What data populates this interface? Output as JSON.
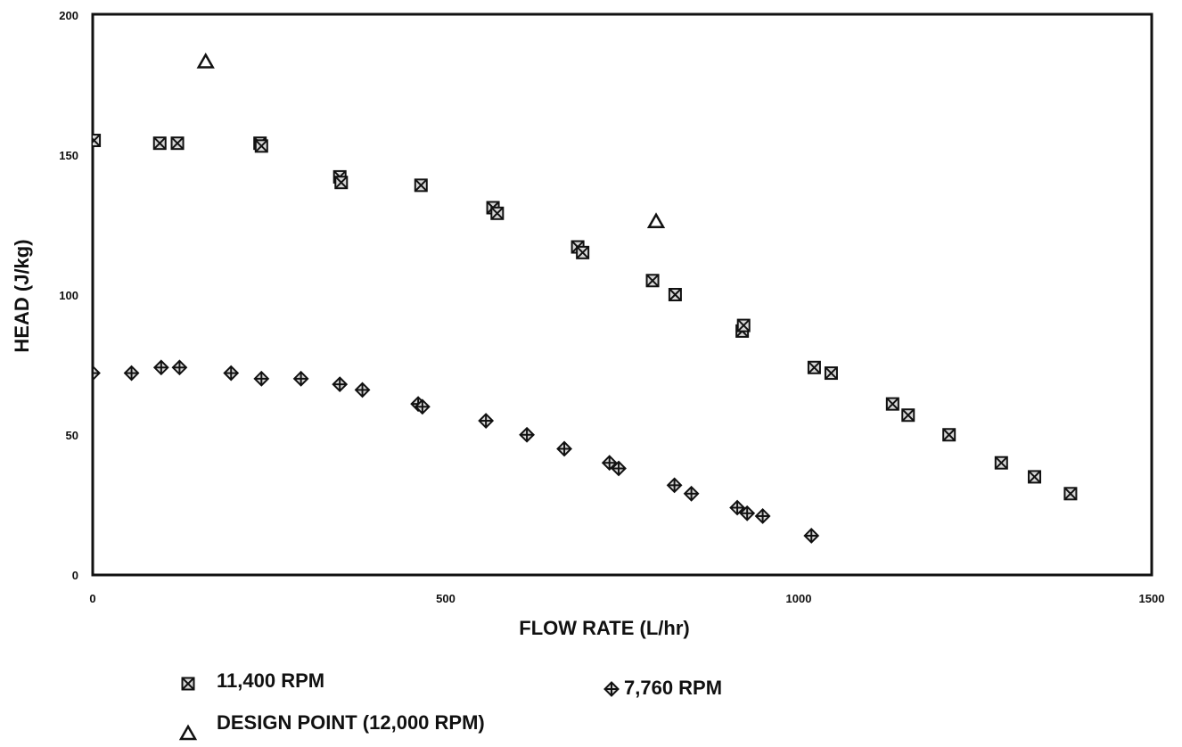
{
  "chart_data": {
    "type": "scatter",
    "title": "",
    "xlabel": "FLOW RATE (L/hr)",
    "ylabel": "HEAD (J/kg)",
    "xlim": [
      0,
      1500
    ],
    "ylim": [
      0,
      200
    ],
    "xticks": [
      "0",
      "500",
      "1000",
      "1500"
    ],
    "yticks": [
      "0",
      "50",
      "100",
      "150",
      "200"
    ],
    "grid": false,
    "legend_position": "bottom",
    "series": [
      {
        "name": "11,400 RPM",
        "marker": "square-x",
        "points": [
          [
            2,
            155
          ],
          [
            95,
            154
          ],
          [
            120,
            154
          ],
          [
            237,
            154
          ],
          [
            239,
            153
          ],
          [
            350,
            142
          ],
          [
            352,
            140
          ],
          [
            465,
            139
          ],
          [
            567,
            131
          ],
          [
            573,
            129
          ],
          [
            687,
            117
          ],
          [
            694,
            115
          ],
          [
            793,
            105
          ],
          [
            825,
            100
          ],
          [
            920,
            87
          ],
          [
            922,
            89
          ],
          [
            1022,
            74
          ],
          [
            1046,
            72
          ],
          [
            1133,
            61
          ],
          [
            1155,
            57
          ],
          [
            1213,
            50
          ],
          [
            1287,
            40
          ],
          [
            1334,
            35
          ],
          [
            1385,
            29
          ]
        ]
      },
      {
        "name": "7,760 RPM",
        "marker": "diamond-plus",
        "points": [
          [
            0,
            72
          ],
          [
            55,
            72
          ],
          [
            97,
            74
          ],
          [
            123,
            74
          ],
          [
            196,
            72
          ],
          [
            239,
            70
          ],
          [
            295,
            70
          ],
          [
            350,
            68
          ],
          [
            382,
            66
          ],
          [
            461,
            61
          ],
          [
            467,
            60
          ],
          [
            557,
            55
          ],
          [
            615,
            50
          ],
          [
            668,
            45
          ],
          [
            732,
            40
          ],
          [
            745,
            38
          ],
          [
            824,
            32
          ],
          [
            848,
            29
          ],
          [
            913,
            24
          ],
          [
            927,
            22
          ],
          [
            949,
            21
          ],
          [
            1018,
            14
          ]
        ]
      },
      {
        "name": "DESIGN POINT (12,000 RPM)",
        "marker": "triangle",
        "points": [
          [
            160,
            183
          ],
          [
            798,
            126
          ]
        ]
      }
    ]
  }
}
